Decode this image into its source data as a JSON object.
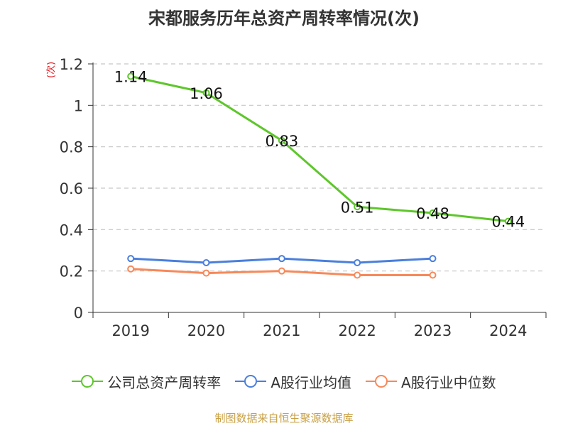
{
  "chart_data": {
    "type": "line",
    "title": "宋都服务历年总资产周转率情况(次)",
    "unit_label": "(次)",
    "categories": [
      "2019",
      "2020",
      "2021",
      "2022",
      "2023",
      "2024"
    ],
    "y_ticks": [
      "0",
      "0.2",
      "0.4",
      "0.6",
      "0.8",
      "1",
      "1.2"
    ],
    "ylim": [
      0,
      1.2
    ],
    "grid": true,
    "legend_position": "bottom",
    "series": [
      {
        "name": "公司总资产周转率",
        "color": "#5ec62b",
        "values": [
          1.14,
          1.06,
          0.83,
          0.51,
          0.48,
          0.44
        ],
        "labels": [
          "1.14",
          "1.06",
          "0.83",
          "0.51",
          "0.48",
          "0.44"
        ]
      },
      {
        "name": "A股行业均值",
        "color": "#4a7fdc",
        "values": [
          0.26,
          0.24,
          0.26,
          0.24,
          0.26,
          null
        ]
      },
      {
        "name": "A股行业中位数",
        "color": "#f7895a",
        "values": [
          0.21,
          0.19,
          0.2,
          0.18,
          0.18,
          null
        ]
      }
    ]
  },
  "source": "制图数据来自恒生聚源数据库"
}
